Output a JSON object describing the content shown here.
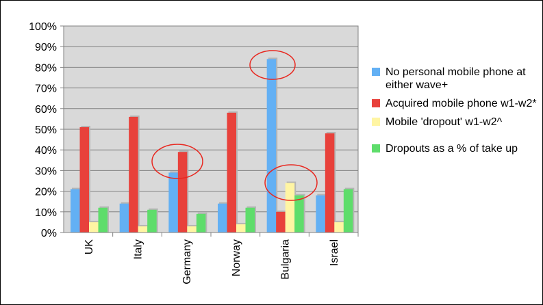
{
  "chart_data": {
    "type": "bar",
    "categories": [
      "UK",
      "Italy",
      "Germany",
      "Norway",
      "Bulgaria",
      "Israel"
    ],
    "series": [
      {
        "name": "No personal mobile phone at either wave+",
        "color": "#63b0f4",
        "values": [
          21,
          14,
          29,
          14,
          84,
          18
        ]
      },
      {
        "name": "Acquired mobile phone w1-w2*",
        "color": "#e8413b",
        "values": [
          51,
          56,
          39,
          58,
          10,
          48
        ]
      },
      {
        "name": "Mobile 'dropout' w1-w2^",
        "color": "#fff5a3",
        "values": [
          5,
          3,
          3,
          4,
          24,
          5
        ]
      },
      {
        "name": "Dropouts as a % of take up",
        "color": "#5edd6b",
        "values": [
          12,
          11,
          9,
          12,
          18,
          21
        ]
      }
    ],
    "ylim": [
      0,
      100
    ],
    "yticks": [
      {
        "value": 0,
        "label": "0%"
      },
      {
        "value": 10,
        "label": "10%"
      },
      {
        "value": 20,
        "label": "20%"
      },
      {
        "value": 30,
        "label": "30%"
      },
      {
        "value": 40,
        "label": "40%"
      },
      {
        "value": 50,
        "label": "50%"
      },
      {
        "value": 60,
        "label": "60%"
      },
      {
        "value": 70,
        "label": "70%"
      },
      {
        "value": 80,
        "label": "80%"
      },
      {
        "value": 90,
        "label": "90%"
      },
      {
        "value": 100,
        "label": "100%"
      }
    ],
    "grid": true
  }
}
